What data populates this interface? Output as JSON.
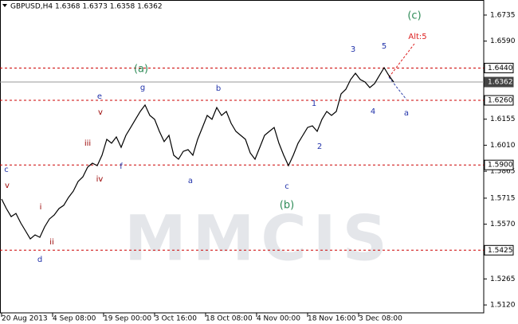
{
  "chart_data": {
    "type": "line",
    "title": "GBPUSD,H4  1.6368 1.6373 1.6358 1.6362",
    "watermark": "MMCIS",
    "series": [
      {
        "name": "GBPUSD",
        "color": "#000000",
        "values": [
          1.571,
          1.5657,
          1.5612,
          1.563,
          1.5577,
          1.5533,
          1.5488,
          1.551,
          1.5497,
          1.5555,
          1.5599,
          1.5621,
          1.5657,
          1.5675,
          1.5719,
          1.5754,
          1.5808,
          1.5834,
          1.5888,
          1.591,
          1.5896,
          1.5954,
          1.6043,
          1.6021,
          1.6056,
          1.5998,
          1.6065,
          1.6109,
          1.6154,
          1.6198,
          1.6234,
          1.6176,
          1.6154,
          1.6087,
          1.603,
          1.6065,
          1.5954,
          1.5932,
          1.5976,
          1.5985,
          1.5954,
          1.6043,
          1.6109,
          1.6176,
          1.6154,
          1.622,
          1.6176,
          1.6198,
          1.6132,
          1.6087,
          1.6065,
          1.6043,
          1.5967,
          1.5932,
          1.5998,
          1.6065,
          1.6087,
          1.6109,
          1.6021,
          1.5954,
          1.5896,
          1.5954,
          1.6021,
          1.6065,
          1.6109,
          1.6118,
          1.6087,
          1.6154,
          1.6198,
          1.6176,
          1.6198,
          1.6296,
          1.6322,
          1.6376,
          1.6411,
          1.6376,
          1.6362,
          1.6331,
          1.6353,
          1.6398,
          1.6442,
          1.6398,
          1.6362
        ]
      }
    ],
    "xlim": [
      0,
      100.67
    ],
    "xticks": [
      {
        "value": 0,
        "label": "20 Aug 2013"
      },
      {
        "value": 10.67,
        "label": "4 Sep 08:00"
      },
      {
        "value": 21.33,
        "label": "19 Sep 00:00"
      },
      {
        "value": 32,
        "label": "3 Oct 16:00"
      },
      {
        "value": 42.67,
        "label": "18 Oct 08:00"
      },
      {
        "value": 53.33,
        "label": "4 Nov 00:00"
      },
      {
        "value": 64,
        "label": "18 Nov 16:00"
      },
      {
        "value": 74.67,
        "label": "3 Dec 08:00"
      }
    ],
    "ylim": [
      1.5076,
      1.6819
    ],
    "yticks": [
      1.6735,
      {
        "value": 1.659,
        "label": "1.6590"
      },
      1.6155,
      {
        "value": 1.601,
        "label": "1.6010"
      },
      1.5865,
      1.5715,
      {
        "value": 1.557,
        "label": "1.5570"
      },
      1.5265,
      {
        "value": 1.512,
        "label": "1.5120"
      }
    ],
    "levels": [
      {
        "value": 1.644,
        "label": "1.6440",
        "color": "#cc0000"
      },
      {
        "value": 1.6362,
        "label": "1.6362",
        "color": "#999999"
      },
      {
        "value": 1.626,
        "label": "1.6260",
        "color": "#cc0000"
      },
      {
        "value": 1.59,
        "label": "1.5900",
        "color": "#cc0000"
      },
      {
        "value": 1.5425,
        "label": "1.5425",
        "color": "#cc0000"
      }
    ],
    "annotations": [
      "(c)",
      "Alt:5",
      "5",
      "3",
      "(a)",
      "g",
      "b",
      "e",
      "1",
      "4",
      "a",
      "v",
      "iii",
      "2",
      "f",
      "c",
      "a",
      "iv",
      "v",
      "c",
      "(b)",
      "i",
      "ii",
      "d"
    ]
  }
}
